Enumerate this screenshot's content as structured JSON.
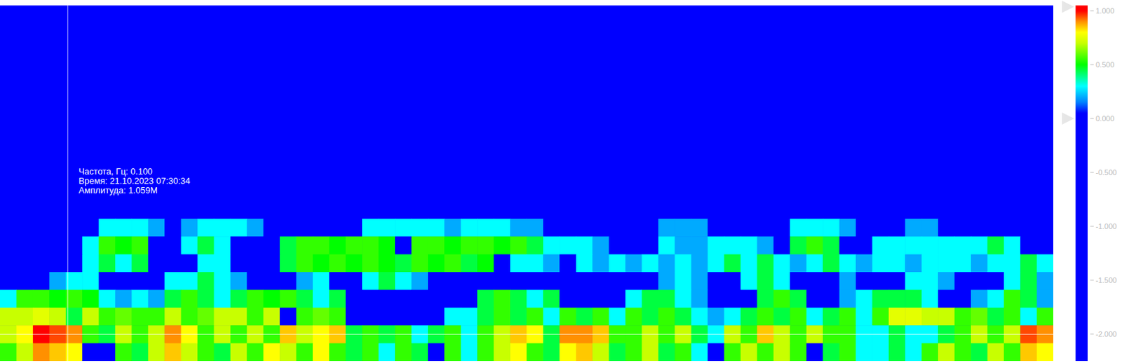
{
  "chart_data": {
    "type": "heatmap",
    "tick_labels": false,
    "annotations": [
      "Частота, Гц: 0.100",
      "Время: 21.10.2023 07:30:34",
      "Амплитуда: 1.059M"
    ],
    "crosshair": {
      "row": 18,
      "column": 4
    },
    "colorbar_range": [
      -2.25,
      1.05
    ],
    "colorbar_ticks": [
      {
        "value": 1,
        "label": "1.000"
      },
      {
        "value": 0.5,
        "label": "0.500"
      },
      {
        "value": 0,
        "label": "0.000"
      },
      {
        "value": -0.5,
        "label": "-0.500"
      },
      {
        "value": -1,
        "label": "-1.000"
      },
      {
        "value": -1.5,
        "label": "-1.500"
      },
      {
        "value": -2,
        "label": "-2.000"
      }
    ],
    "color_handles": [
      1.05,
      0
    ],
    "cells": [
      [
        0,
        0,
        0,
        0,
        0,
        0,
        0,
        0,
        0,
        0,
        0,
        0,
        0,
        0,
        0,
        0,
        0,
        0,
        0,
        0,
        0,
        0,
        0,
        0,
        0,
        0,
        0,
        0,
        0,
        0,
        0,
        0,
        0,
        0,
        0,
        0,
        0,
        0,
        0,
        0,
        0,
        0,
        0,
        0,
        0,
        0,
        0,
        0,
        0,
        0,
        0,
        0,
        0,
        0,
        0,
        0,
        0,
        0,
        0,
        0,
        0,
        0,
        0,
        0
      ],
      [
        0,
        0,
        0,
        0,
        0,
        0,
        0,
        0,
        0,
        0,
        0,
        0,
        0,
        0,
        0,
        0,
        0,
        0,
        0,
        0,
        0,
        0,
        0,
        0,
        0,
        0,
        0,
        0,
        0,
        0,
        0,
        0,
        0,
        0,
        0,
        0,
        0,
        0,
        0,
        0,
        0,
        0,
        0,
        0,
        0,
        0,
        0,
        0,
        0,
        0,
        0,
        0,
        0,
        0,
        0,
        0,
        0,
        0,
        0,
        0,
        0,
        0,
        0,
        0
      ],
      [
        0,
        0,
        0,
        0,
        0,
        0,
        0,
        0,
        0,
        0,
        0,
        0,
        0,
        0,
        0,
        0,
        0,
        0,
        0,
        0,
        0,
        0,
        0,
        0,
        0,
        0,
        0,
        0,
        0,
        0,
        0,
        0,
        0,
        0,
        0,
        0,
        0,
        0,
        0,
        0,
        0,
        0,
        0,
        0,
        0,
        0,
        0,
        0,
        0,
        0,
        0,
        0,
        0,
        0,
        0,
        0,
        0,
        0,
        0,
        0,
        0,
        0,
        0,
        0
      ],
      [
        0,
        0,
        0,
        0,
        0,
        0,
        0,
        0,
        0,
        0,
        0,
        0,
        0,
        0,
        0,
        0,
        0,
        0,
        0,
        0,
        0,
        0,
        0,
        0,
        0,
        0,
        0,
        0,
        0,
        0,
        0,
        0,
        0,
        0,
        0,
        0,
        0,
        0,
        0,
        0,
        0,
        0,
        0,
        0,
        0,
        0,
        0,
        0,
        0,
        0,
        0,
        0,
        0,
        0,
        0,
        0,
        0,
        0,
        0,
        0,
        0,
        0,
        0,
        0
      ],
      [
        0,
        0,
        0,
        0,
        0,
        0,
        0,
        0,
        0,
        0,
        0,
        0,
        0,
        0,
        0,
        0,
        0,
        0,
        0,
        0,
        0,
        0,
        0,
        0,
        0,
        0,
        0,
        0,
        0,
        0,
        0,
        0,
        0,
        0,
        0,
        0,
        0,
        0,
        0,
        0,
        0,
        0,
        0,
        0,
        0,
        0,
        0,
        0,
        0,
        0,
        0,
        0,
        0,
        0,
        0,
        0,
        0,
        0,
        0,
        0,
        0,
        0,
        0,
        0
      ],
      [
        0,
        0,
        0,
        0,
        0,
        0,
        0,
        0,
        0,
        0,
        0,
        0,
        0,
        0,
        0,
        0,
        0,
        0,
        0,
        0,
        0,
        0,
        0,
        0,
        0,
        0,
        0,
        0,
        0,
        0,
        0,
        0,
        0,
        0,
        0,
        0,
        0,
        0,
        0,
        0,
        0,
        0,
        0,
        0,
        0,
        0,
        0,
        0,
        0,
        0,
        0,
        0,
        0,
        0,
        0,
        0,
        0,
        0,
        0,
        0,
        0,
        0,
        0,
        0
      ],
      [
        0,
        0,
        0,
        0,
        0,
        0,
        0,
        0,
        0,
        0,
        0,
        0,
        0,
        0,
        0,
        0,
        0,
        0,
        0,
        0,
        0,
        0,
        0,
        0,
        0,
        0,
        0,
        0,
        0,
        0,
        0,
        0,
        0,
        0,
        0,
        0,
        0,
        0,
        0,
        0,
        0,
        0,
        0,
        0,
        0,
        0,
        0,
        0,
        0,
        0,
        0,
        0,
        0,
        0,
        0,
        0,
        0,
        0,
        0,
        0,
        0,
        0,
        0,
        0
      ],
      [
        0,
        0,
        0,
        0,
        0,
        0,
        0,
        0,
        0,
        0,
        0,
        0,
        0,
        0,
        0,
        0,
        0,
        0,
        0,
        0,
        0,
        0,
        0,
        0,
        0,
        0,
        0,
        0,
        0,
        0,
        0,
        0,
        0,
        0,
        0,
        0,
        0,
        0,
        0,
        0,
        0,
        0,
        0,
        0,
        0,
        0,
        0,
        0,
        0,
        0,
        0,
        0,
        0,
        0,
        0,
        0,
        0,
        0,
        0,
        0,
        0,
        0,
        0,
        0
      ],
      [
        0,
        0,
        0,
        0,
        0,
        0,
        0,
        0,
        0,
        0,
        0,
        0,
        0,
        0,
        0,
        0,
        0,
        0,
        0,
        0,
        0,
        0,
        0,
        0,
        0,
        0,
        0,
        0,
        0,
        0,
        0,
        0,
        0,
        0,
        0,
        0,
        0,
        0,
        0,
        0,
        0,
        0,
        0,
        0,
        0,
        0,
        0,
        0,
        0,
        0,
        0,
        0,
        0,
        0,
        0,
        0,
        0,
        0,
        0,
        0,
        0,
        0,
        0,
        0
      ],
      [
        0,
        0,
        0,
        0,
        0,
        0,
        0,
        0,
        0,
        0,
        0,
        0,
        0,
        0,
        0,
        0,
        0,
        0,
        0,
        0,
        0,
        0,
        0,
        0,
        0,
        0,
        0,
        0,
        0,
        0,
        0,
        0,
        0,
        0,
        0,
        0,
        0,
        0,
        0,
        0,
        0,
        0,
        0,
        0,
        0,
        0,
        0,
        0,
        0,
        0,
        0,
        0,
        0,
        0,
        0,
        0,
        0,
        0,
        0,
        0,
        0,
        0,
        0,
        0
      ],
      [
        0,
        0,
        0,
        0,
        0,
        0,
        0,
        0,
        0,
        0,
        0,
        0,
        0,
        0,
        0,
        0,
        0,
        0,
        0,
        0,
        0,
        0,
        0,
        0,
        0,
        0,
        0,
        0,
        0,
        0,
        0,
        0,
        0,
        0,
        0,
        0,
        0,
        0,
        0,
        0,
        0,
        0,
        0,
        0,
        0,
        0,
        0,
        0,
        0,
        0,
        0,
        0,
        0,
        0,
        0,
        0,
        0,
        0,
        0,
        0,
        0,
        0,
        0,
        0
      ],
      [
        0,
        0,
        0,
        0,
        0,
        0,
        0,
        0,
        0,
        0,
        0,
        0,
        0,
        0,
        0,
        0,
        0,
        0,
        0,
        0,
        0,
        0,
        0,
        0,
        0,
        0,
        0,
        0,
        0,
        0,
        0,
        0,
        0,
        0,
        0,
        0,
        0,
        0,
        0,
        0,
        0,
        0,
        0,
        0,
        0,
        0,
        0,
        0,
        0,
        0,
        0,
        0,
        0,
        0,
        0,
        0,
        0,
        0,
        0,
        0,
        0,
        0,
        0,
        0
      ],
      [
        0,
        0,
        0,
        0,
        0,
        0,
        0.3,
        0.3,
        0.3,
        0.2,
        0,
        0.2,
        0.3,
        0.3,
        0.3,
        0.2,
        0,
        0,
        0,
        0,
        0,
        0,
        0.3,
        0.3,
        0.3,
        0.3,
        0.3,
        0.2,
        0.3,
        0.3,
        0.3,
        0.2,
        0.2,
        0,
        0,
        0,
        0,
        0,
        0,
        0,
        0.2,
        0.2,
        0.2,
        0,
        0,
        0,
        0,
        0,
        0.3,
        0.3,
        0.3,
        0.2,
        0,
        0,
        0,
        0.2,
        0.2,
        0,
        0,
        0,
        0,
        0,
        0,
        0
      ],
      [
        0,
        0,
        0,
        0,
        0,
        0.3,
        0.55,
        0.5,
        0.55,
        0,
        0,
        0.3,
        0.45,
        0.3,
        0,
        0,
        0,
        0.45,
        0.55,
        0.55,
        0.5,
        0.55,
        0.55,
        0.5,
        0,
        0.55,
        0.55,
        0.5,
        0.55,
        0.55,
        0.5,
        0.55,
        0.45,
        0.3,
        0.3,
        0.3,
        0.2,
        0,
        0,
        0,
        0.3,
        0.2,
        0.2,
        0.3,
        0.3,
        0.3,
        0.2,
        0,
        0.45,
        0.55,
        0.45,
        0,
        0,
        0.3,
        0.3,
        0.3,
        0.3,
        0.3,
        0.3,
        0.3,
        0.45,
        0.3,
        0,
        0
      ],
      [
        0,
        0,
        0,
        0,
        0,
        0.3,
        0.45,
        0.3,
        0.45,
        0,
        0,
        0,
        0.3,
        0.3,
        0,
        0,
        0,
        0.45,
        0.55,
        0.5,
        0.55,
        0.5,
        0.55,
        0.5,
        0.45,
        0.55,
        0.5,
        0.55,
        0.45,
        0.5,
        0,
        0.3,
        0.3,
        0.2,
        0,
        0.3,
        0.2,
        0.3,
        0.2,
        0.3,
        0.2,
        0.3,
        0.2,
        0.3,
        0.45,
        0.3,
        0.45,
        0.3,
        0.2,
        0.3,
        0.45,
        0.3,
        0.2,
        0.3,
        0.3,
        0.2,
        0.3,
        0.3,
        0.3,
        0.2,
        0.3,
        0.3,
        0.45,
        0.3
      ],
      [
        0,
        0,
        0,
        0.2,
        0.3,
        0.3,
        0,
        0,
        0,
        0,
        0.3,
        0.3,
        0.45,
        0.3,
        0.2,
        0,
        0,
        0,
        0.2,
        0.3,
        0,
        0,
        0.3,
        0.45,
        0.3,
        0.2,
        0,
        0,
        0,
        0,
        0,
        0,
        0,
        0,
        0,
        0,
        0,
        0,
        0,
        0,
        0.2,
        0.3,
        0.2,
        0,
        0,
        0.3,
        0.45,
        0.3,
        0,
        0,
        0,
        0.2,
        0,
        0,
        0,
        0.3,
        0.3,
        0.2,
        0,
        0,
        0,
        0.3,
        0.45,
        0.2
      ],
      [
        0.3,
        0.55,
        0.55,
        0.5,
        0.55,
        0.5,
        0.3,
        0.2,
        0.3,
        0.2,
        0.45,
        0.55,
        0.45,
        0.3,
        0.45,
        0.55,
        0.5,
        0.55,
        0.45,
        0.3,
        0.45,
        0,
        0,
        0,
        0,
        0,
        0,
        0,
        0,
        0.45,
        0.55,
        0.45,
        0.3,
        0.45,
        0,
        0,
        0,
        0,
        0.3,
        0.45,
        0.45,
        0.3,
        0.2,
        0,
        0,
        0,
        0.45,
        0.55,
        0.45,
        0,
        0,
        0.2,
        0.3,
        0.45,
        0.45,
        0.45,
        0.3,
        0,
        0,
        0.2,
        0.3,
        0.55,
        0.45,
        0.2
      ],
      [
        0.7,
        0.7,
        0.75,
        0.7,
        0.45,
        0.7,
        0.55,
        0.6,
        0.55,
        0.55,
        0.7,
        0.55,
        0.6,
        0.7,
        0.7,
        0.55,
        0.7,
        0,
        0.55,
        0.6,
        0.55,
        0,
        0,
        0,
        0,
        0,
        0,
        0.3,
        0.3,
        0.45,
        0.55,
        0.45,
        0.55,
        0.3,
        0.55,
        0.45,
        0.55,
        0.3,
        0.55,
        0.45,
        0.55,
        0.45,
        0.3,
        0.2,
        0.3,
        0.45,
        0.55,
        0.45,
        0.55,
        0.3,
        0.45,
        0.55,
        0.3,
        0.55,
        0.75,
        0.75,
        0.7,
        0.7,
        0.55,
        0.6,
        0.45,
        0.55,
        0.3,
        0.55
      ],
      [
        0.7,
        0.8,
        1,
        0.95,
        0.9,
        0.55,
        0.45,
        0.7,
        0.55,
        0.7,
        0.9,
        0.8,
        0.55,
        0.7,
        0.55,
        0.7,
        0.55,
        0.85,
        0.7,
        0.8,
        0.85,
        0.45,
        0.55,
        0.45,
        0.55,
        0.3,
        0.45,
        0.55,
        0.3,
        0.55,
        0.7,
        0.85,
        0.8,
        0.45,
        0.9,
        0.9,
        0.85,
        0.55,
        0.55,
        0.7,
        0.55,
        0.7,
        0.45,
        0.3,
        0.7,
        0.55,
        0.85,
        0.7,
        0.55,
        0.7,
        0.55,
        0.55,
        0.3,
        0.3,
        0.45,
        0.3,
        0.3,
        0.45,
        0.55,
        0.7,
        0.55,
        0.7,
        0.95,
        0.9
      ],
      [
        0.55,
        0.7,
        0.9,
        0.85,
        0.8,
        0,
        0,
        0.55,
        0.45,
        0.7,
        0.85,
        0.7,
        0.55,
        0.45,
        0.7,
        0.55,
        0.8,
        0.7,
        0.55,
        0.8,
        0.55,
        0.45,
        0.55,
        0.3,
        0.55,
        0.45,
        0,
        0.55,
        0.3,
        0.55,
        0.7,
        0.8,
        0.55,
        0.45,
        0.8,
        0.85,
        0.7,
        0.45,
        0.55,
        0.7,
        0.45,
        0.55,
        0.3,
        0,
        0.55,
        0.7,
        0.55,
        0.7,
        0.55,
        0,
        0.45,
        0.55,
        0.3,
        0.3,
        0.45,
        0.3,
        0.55,
        0.7,
        0.55,
        0.45,
        0.7,
        0.55,
        0.85,
        0.8
      ]
    ]
  }
}
